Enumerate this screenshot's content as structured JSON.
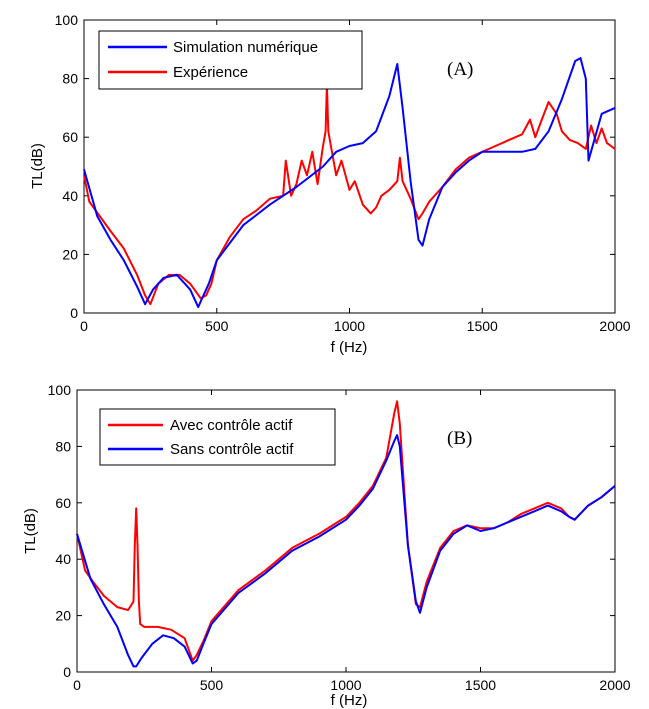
{
  "chart_data": [
    {
      "type": "line",
      "tag": "(A)",
      "xlabel": "f (Hz)",
      "ylabel": "TL(dB)",
      "xlim": [
        0,
        2000
      ],
      "ylim": [
        0,
        100
      ],
      "xticks": [
        0,
        500,
        1000,
        1500,
        2000
      ],
      "yticks": [
        0,
        20,
        40,
        60,
        80,
        100
      ],
      "grid": false,
      "legend_position": "top-left",
      "series": [
        {
          "name": "Simulation numérique",
          "color": "#0000ff",
          "x": [
            0,
            50,
            100,
            150,
            200,
            230,
            260,
            300,
            350,
            400,
            430,
            445,
            470,
            500,
            600,
            700,
            800,
            900,
            950,
            1000,
            1050,
            1100,
            1150,
            1180,
            1200,
            1230,
            1260,
            1275,
            1300,
            1350,
            1400,
            1450,
            1500,
            1550,
            1600,
            1650,
            1700,
            1750,
            1800,
            1850,
            1870,
            1890,
            1900,
            1950,
            2000
          ],
          "y": [
            49,
            33,
            25,
            18,
            9,
            3,
            8,
            12,
            13,
            8,
            2,
            5,
            10,
            18,
            30,
            37,
            43,
            50,
            55,
            57,
            58,
            62,
            74,
            85,
            70,
            45,
            25,
            23,
            32,
            43,
            48,
            52,
            55,
            55,
            55,
            55,
            56,
            62,
            73,
            86,
            87,
            80,
            52,
            68,
            70
          ]
        },
        {
          "name": "Expérience",
          "color": "#ff0000",
          "x": [
            0,
            20,
            60,
            100,
            150,
            200,
            230,
            250,
            280,
            320,
            360,
            400,
            440,
            460,
            480,
            500,
            550,
            600,
            650,
            700,
            750,
            760,
            780,
            800,
            820,
            840,
            860,
            880,
            900,
            910,
            915,
            920,
            930,
            950,
            970,
            1000,
            1020,
            1050,
            1080,
            1100,
            1120,
            1150,
            1180,
            1190,
            1200,
            1230,
            1260,
            1275,
            1300,
            1350,
            1400,
            1450,
            1500,
            1550,
            1600,
            1650,
            1680,
            1700,
            1720,
            1750,
            1780,
            1800,
            1830,
            1860,
            1890,
            1910,
            1930,
            1950,
            1970,
            2000
          ],
          "y": [
            47,
            38,
            33,
            28,
            22,
            13,
            6,
            3,
            10,
            13,
            13,
            10,
            5,
            6,
            10,
            18,
            26,
            32,
            35,
            39,
            40,
            52,
            40,
            44,
            52,
            47,
            55,
            44,
            57,
            62,
            78,
            62,
            57,
            47,
            52,
            42,
            45,
            37,
            34,
            36,
            40,
            42,
            45,
            53,
            45,
            39,
            32,
            34,
            38,
            43,
            49,
            53,
            55,
            57,
            59,
            61,
            66,
            60,
            65,
            72,
            68,
            62,
            59,
            58,
            56,
            64,
            58,
            63,
            58,
            56
          ]
        }
      ]
    },
    {
      "type": "line",
      "tag": "(B)",
      "xlabel": "f (Hz)",
      "ylabel": "TL(dB)",
      "xlim": [
        0,
        2000
      ],
      "ylim": [
        0,
        100
      ],
      "xticks": [
        0,
        500,
        1000,
        1500,
        2000
      ],
      "yticks": [
        0,
        20,
        40,
        60,
        80,
        100
      ],
      "grid": false,
      "legend_position": "top-left",
      "series": [
        {
          "name": "Avec contrôle actif",
          "color": "#ff0000",
          "x": [
            0,
            30,
            60,
            100,
            150,
            190,
            210,
            215,
            220,
            225,
            230,
            235,
            250,
            300,
            350,
            400,
            430,
            445,
            470,
            500,
            600,
            700,
            800,
            900,
            1000,
            1050,
            1100,
            1150,
            1180,
            1190,
            1200,
            1230,
            1260,
            1275,
            1300,
            1350,
            1400,
            1450,
            1500,
            1550,
            1600,
            1650,
            1700,
            1750,
            1800,
            1830,
            1850,
            1870,
            1900,
            1950,
            2000
          ],
          "y": [
            49,
            36,
            32,
            27,
            23,
            22,
            25,
            45,
            58,
            45,
            25,
            17,
            16,
            16,
            15,
            12,
            4,
            6,
            11,
            18,
            29,
            36,
            44,
            49,
            55,
            60,
            66,
            76,
            92,
            96,
            88,
            45,
            24,
            23,
            32,
            44,
            50,
            52,
            51,
            51,
            53,
            56,
            58,
            60,
            58,
            55,
            54,
            56,
            59,
            62,
            66
          ]
        },
        {
          "name": "Sans contrôle actif",
          "color": "#0000ff",
          "x": [
            0,
            50,
            100,
            150,
            190,
            210,
            220,
            240,
            280,
            320,
            360,
            400,
            430,
            445,
            470,
            500,
            600,
            700,
            800,
            900,
            1000,
            1050,
            1100,
            1150,
            1180,
            1190,
            1200,
            1230,
            1260,
            1275,
            1300,
            1350,
            1400,
            1450,
            1500,
            1550,
            1600,
            1650,
            1700,
            1750,
            1800,
            1830,
            1850,
            1870,
            1900,
            1950,
            2000
          ],
          "y": [
            49,
            33,
            24,
            16,
            6,
            2,
            2,
            5,
            10,
            13,
            12,
            9,
            3,
            4,
            10,
            17,
            28,
            35,
            43,
            48,
            54,
            59,
            65,
            75,
            82,
            84,
            80,
            45,
            25,
            21,
            30,
            43,
            49,
            52,
            50,
            51,
            53,
            55,
            57,
            59,
            57,
            55,
            54,
            56,
            59,
            62,
            66
          ]
        }
      ]
    }
  ]
}
